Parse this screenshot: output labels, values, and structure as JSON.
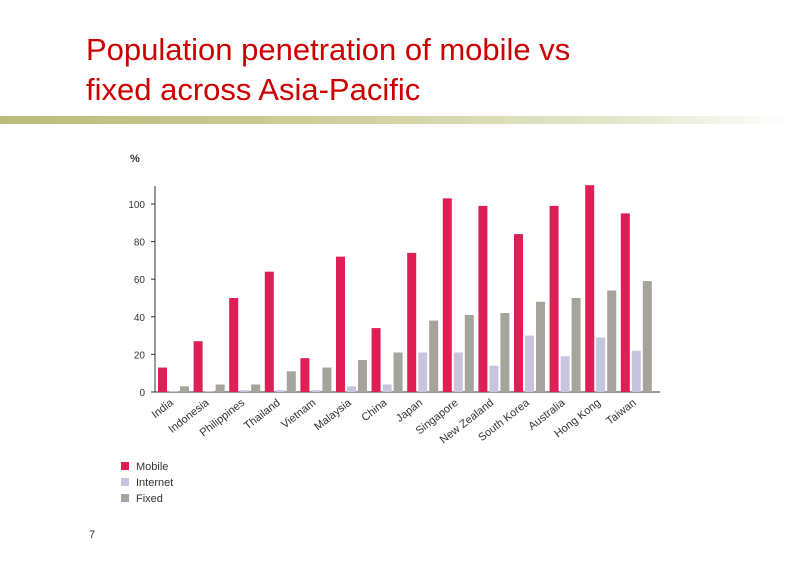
{
  "slide": {
    "title_line1": "Population penetration of mobile vs",
    "title_line2": "fixed across Asia-Pacific",
    "page_number": "7"
  },
  "chart_data": {
    "type": "bar",
    "ylabel": "%",
    "ylim": [
      0,
      115
    ],
    "yticks": [
      "0",
      "20",
      "40",
      "60",
      "80",
      "100"
    ],
    "categories": [
      "India",
      "Indonesia",
      "Philippines",
      "Thailand",
      "Vietnam",
      "Malaysia",
      "China",
      "Japan",
      "Singapore",
      "New Zealand",
      "South Korea",
      "Australia",
      "Hong Kong",
      "Taiwan"
    ],
    "series": [
      {
        "name": "Mobile",
        "color": "#dd1f55",
        "values": [
          13,
          27,
          50,
          64,
          18,
          72,
          34,
          74,
          103,
          99,
          84,
          99,
          110,
          95
        ]
      },
      {
        "name": "Internet",
        "color": "#c9c4de",
        "values": [
          0.5,
          0.5,
          1,
          1,
          1,
          3,
          4,
          21,
          21,
          14,
          30,
          19,
          29,
          22
        ]
      },
      {
        "name": "Fixed",
        "color": "#a6a39d",
        "values": [
          3,
          4,
          4,
          11,
          13,
          17,
          21,
          38,
          41,
          42,
          48,
          50,
          54,
          59
        ]
      }
    ],
    "grid": false,
    "legend": "bottom-left"
  }
}
